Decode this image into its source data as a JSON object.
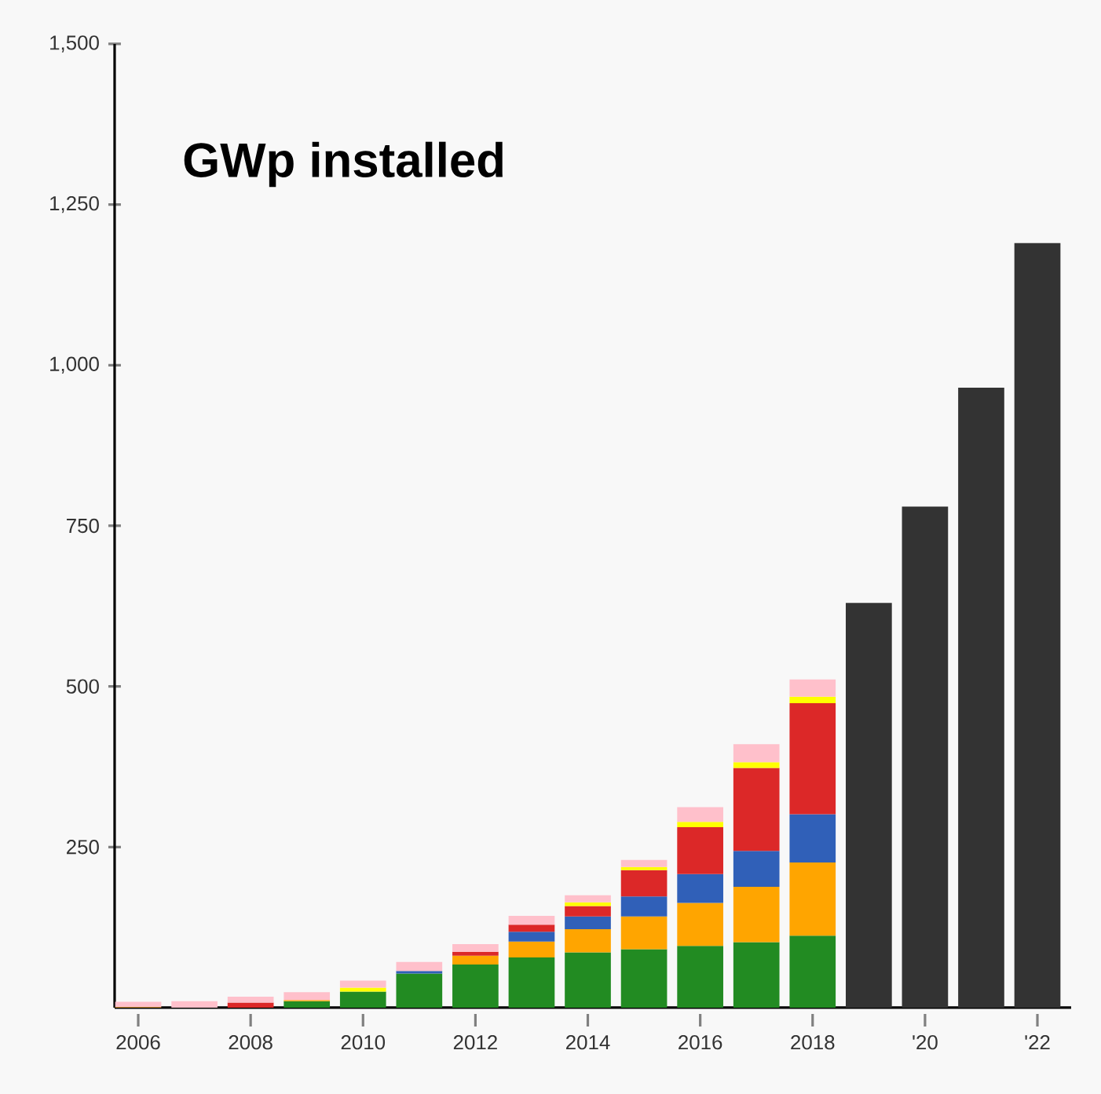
{
  "chart_data": {
    "type": "bar",
    "title": "GWp installed",
    "stacked": true,
    "categories": [
      "2006",
      null,
      "2008",
      null,
      "2010",
      null,
      "2012",
      null,
      "2014",
      null,
      "2016",
      null,
      "2018",
      null,
      "'20",
      null,
      "'22"
    ],
    "series": [
      {
        "color": "#228b22",
        "values": [
          null,
          null,
          null,
          10,
          25,
          53,
          67,
          78,
          86,
          91,
          96,
          102,
          112,
          null,
          null,
          null,
          null
        ]
      },
      {
        "color": "#ffa500",
        "values": [
          1,
          null,
          null,
          2,
          null,
          null,
          14,
          25,
          36,
          51,
          67,
          86,
          114,
          null,
          null,
          null,
          null
        ]
      },
      {
        "color": "#3060b8",
        "values": [
          null,
          null,
          null,
          null,
          null,
          4,
          null,
          15,
          20,
          31,
          45,
          56,
          75,
          null,
          null,
          null,
          null
        ]
      },
      {
        "color": "#dc2828",
        "values": [
          null,
          null,
          8,
          null,
          null,
          null,
          6,
          11,
          16,
          41,
          73,
          129,
          173,
          null,
          null,
          null,
          null
        ]
      },
      {
        "color": "#ffff00",
        "values": [
          null,
          null,
          null,
          null,
          6,
          null,
          null,
          null,
          6,
          5,
          8,
          9,
          10,
          null,
          null,
          null,
          null
        ]
      },
      {
        "color": "#ffc0cb",
        "values": [
          8,
          10,
          9,
          12,
          11,
          14,
          12,
          14,
          11,
          11,
          23,
          28,
          27,
          null,
          null,
          null,
          null
        ]
      },
      {
        "color": "#333333",
        "values": [
          null,
          null,
          null,
          null,
          null,
          null,
          null,
          null,
          null,
          null,
          null,
          null,
          null,
          630,
          780,
          965,
          1190
        ]
      }
    ],
    "ylim": [
      0,
      1500
    ],
    "yticks": [
      {
        "value": 250,
        "label": "250"
      },
      {
        "value": 500,
        "label": "500"
      },
      {
        "value": 750,
        "label": "750"
      },
      {
        "value": 1000,
        "label": "1,000"
      },
      {
        "value": 1250,
        "label": "1,250"
      },
      {
        "value": 1500,
        "label": "1,500"
      }
    ]
  }
}
